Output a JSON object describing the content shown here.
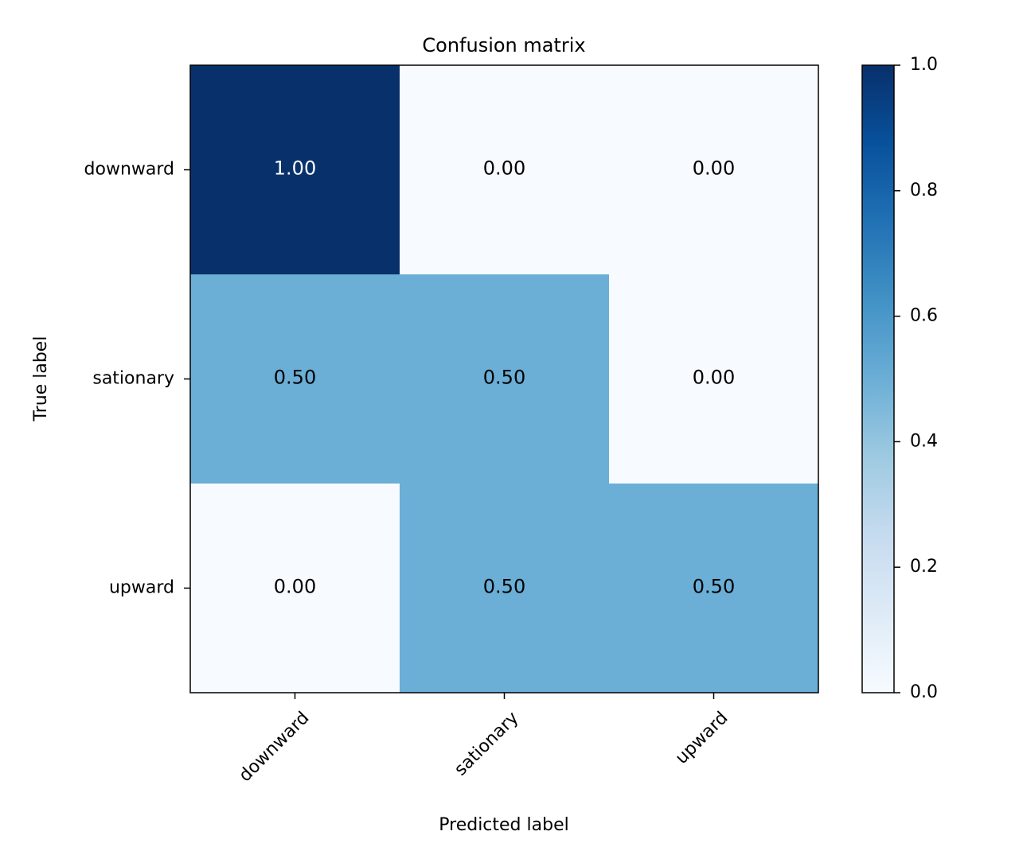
{
  "chart_data": {
    "type": "heatmap",
    "title": "Confusion matrix",
    "xlabel": "Predicted label",
    "ylabel": "True label",
    "x_categories": [
      "downward",
      "sationary",
      "upward"
    ],
    "y_categories": [
      "downward",
      "sationary",
      "upward"
    ],
    "values": [
      [
        1.0,
        0.0,
        0.0
      ],
      [
        0.5,
        0.5,
        0.0
      ],
      [
        0.0,
        0.5,
        0.5
      ]
    ],
    "cell_labels": [
      [
        "1.00",
        "0.00",
        "0.00"
      ],
      [
        "0.50",
        "0.50",
        "0.00"
      ],
      [
        "0.00",
        "0.50",
        "0.50"
      ]
    ],
    "colormap": "Blues",
    "colorbar": {
      "range": [
        0.0,
        1.0
      ],
      "ticks": [
        0.0,
        0.2,
        0.4,
        0.6,
        0.8,
        1.0
      ],
      "tick_labels": [
        "0.0",
        "0.2",
        "0.4",
        "0.6",
        "0.8",
        "1.0"
      ]
    },
    "grid": false,
    "legend": "colorbar-right"
  }
}
